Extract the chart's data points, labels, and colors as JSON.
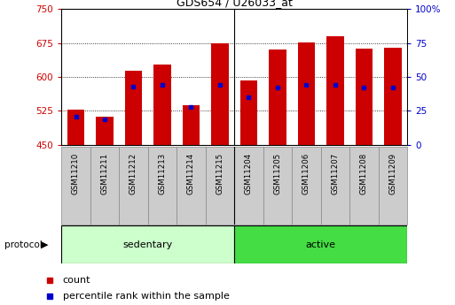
{
  "title": "GDS654 / U26033_at",
  "samples": [
    "GSM11210",
    "GSM11211",
    "GSM11212",
    "GSM11213",
    "GSM11214",
    "GSM11215",
    "GSM11204",
    "GSM11205",
    "GSM11206",
    "GSM11207",
    "GSM11208",
    "GSM11209"
  ],
  "groups": [
    "sedentary",
    "sedentary",
    "sedentary",
    "sedentary",
    "sedentary",
    "sedentary",
    "active",
    "active",
    "active",
    "active",
    "active",
    "active"
  ],
  "count_values": [
    527,
    513,
    614,
    627,
    537,
    675,
    593,
    660,
    676,
    690,
    663,
    665
  ],
  "percentile_values": [
    21,
    19,
    43,
    44,
    28,
    44,
    35,
    42,
    44,
    44,
    42,
    42
  ],
  "ylim_left": [
    450,
    750
  ],
  "ylim_right": [
    0,
    100
  ],
  "yticks_left": [
    450,
    525,
    600,
    675,
    750
  ],
  "yticks_right": [
    0,
    25,
    50,
    75,
    100
  ],
  "bar_color": "#cc0000",
  "percentile_color": "#0000cc",
  "bar_width": 0.6,
  "sedentary_color": "#ccffcc",
  "active_color": "#44dd44",
  "group_label": "protocol",
  "legend_items": [
    "count",
    "percentile rank within the sample"
  ],
  "background_color": "#ffffff",
  "tick_label_color_left": "#cc0000",
  "tick_label_color_right": "#0000cc",
  "title_color": "#000000",
  "xlim": [
    -0.5,
    11.5
  ],
  "separator_x": 5.5,
  "n_sedentary": 6,
  "n_active": 6
}
